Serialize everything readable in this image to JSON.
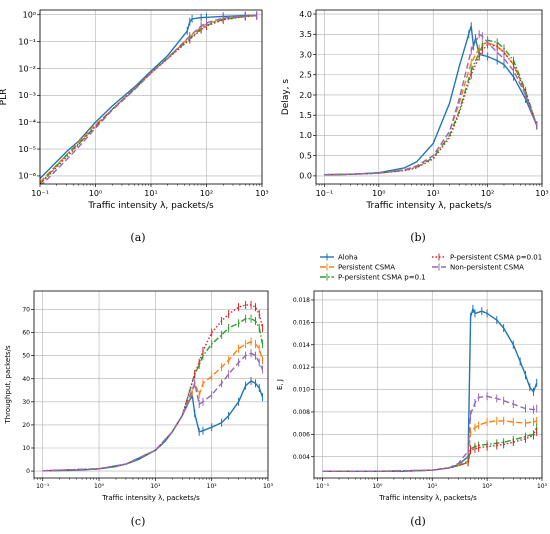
{
  "chart_data": [
    {
      "id": "a",
      "type": "line",
      "caption": "(a)",
      "xlabel": "Traffic intensity λ, packets/s",
      "ylabel": "PLR",
      "xscale": "log",
      "yscale": "log",
      "xlim": [
        0.1,
        1000
      ],
      "ylim": [
        5e-07,
        1.5
      ],
      "xticks": [
        0.1,
        1,
        10,
        100,
        1000
      ],
      "xticklabels": [
        "10⁻¹",
        "10⁰",
        "10¹",
        "10²",
        "10³"
      ],
      "yticks": [
        1e-06,
        1e-05,
        0.0001,
        0.001,
        0.01,
        0.1,
        1
      ],
      "yticklabels": [
        "10⁻⁶",
        "10⁻⁵",
        "10⁻⁴",
        "10⁻³",
        "10⁻²",
        "10⁻¹",
        "10⁰"
      ],
      "grid": true,
      "series": [
        {
          "key": "aloha",
          "x": [
            0.1,
            0.3,
            0.5,
            1,
            2,
            5,
            10,
            20,
            45,
            50,
            55,
            80,
            100,
            200,
            500,
            800
          ],
          "y": [
            8e-07,
            8e-06,
            2e-05,
            0.0001,
            0.0004,
            0.002,
            0.008,
            0.03,
            0.25,
            0.55,
            0.7,
            0.78,
            0.8,
            0.87,
            0.93,
            0.95
          ]
        },
        {
          "key": "persistent",
          "x": [
            0.1,
            0.3,
            0.5,
            1,
            2,
            5,
            10,
            20,
            50,
            80,
            100,
            200,
            500,
            800
          ],
          "y": [
            6e-07,
            6e-06,
            1.8e-05,
            8e-05,
            0.0003,
            0.0018,
            0.007,
            0.025,
            0.15,
            0.35,
            0.45,
            0.7,
            0.88,
            0.93
          ]
        },
        {
          "key": "ppersistent01",
          "x": [
            0.1,
            0.3,
            0.5,
            1,
            2,
            5,
            10,
            20,
            50,
            80,
            100,
            200,
            500,
            800
          ],
          "y": [
            5e-07,
            6e-06,
            1.6e-05,
            7e-05,
            0.0003,
            0.0017,
            0.007,
            0.024,
            0.13,
            0.3,
            0.4,
            0.67,
            0.87,
            0.93
          ]
        },
        {
          "key": "ppersistent001",
          "x": [
            0.1,
            0.3,
            0.5,
            1,
            2,
            5,
            10,
            20,
            50,
            80,
            100,
            200,
            500,
            800
          ],
          "y": [
            5e-07,
            5e-06,
            1.5e-05,
            7e-05,
            0.0003,
            0.0017,
            0.0068,
            0.023,
            0.12,
            0.28,
            0.38,
            0.65,
            0.86,
            0.92
          ]
        },
        {
          "key": "nonpersistent",
          "x": [
            0.1,
            0.3,
            0.5,
            1,
            2,
            5,
            10,
            20,
            50,
            80,
            100,
            200,
            500,
            800
          ],
          "y": [
            4e-07,
            4e-06,
            1.2e-05,
            6e-05,
            0.00028,
            0.0016,
            0.0066,
            0.024,
            0.16,
            0.38,
            0.5,
            0.75,
            0.9,
            0.94
          ]
        }
      ]
    },
    {
      "id": "b",
      "type": "line",
      "caption": "(b)",
      "xlabel": "Traffic intensity λ, packets/s",
      "ylabel": "Delay, s",
      "xscale": "log",
      "yscale": "linear",
      "xlim": [
        0.07,
        1000
      ],
      "ylim": [
        -0.2,
        4.1
      ],
      "xticks": [
        0.1,
        1,
        10,
        100,
        1000
      ],
      "xticklabels": [
        "10⁻¹",
        "10⁰",
        "10¹",
        "10²",
        "10³"
      ],
      "yticks": [
        0,
        0.5,
        1,
        1.5,
        2,
        2.5,
        3,
        3.5,
        4
      ],
      "yticklabels": [
        "0.0",
        "0.5",
        "1.0",
        "1.5",
        "2.0",
        "2.5",
        "3.0",
        "3.5",
        "4.0"
      ],
      "grid": true,
      "series": [
        {
          "key": "aloha",
          "x": [
            0.1,
            0.3,
            1,
            3,
            5,
            10,
            20,
            30,
            45,
            50,
            55,
            60,
            70,
            100,
            150,
            200,
            300,
            500,
            800
          ],
          "y": [
            0.03,
            0.04,
            0.08,
            0.2,
            0.35,
            0.8,
            1.8,
            2.7,
            3.5,
            3.7,
            3.2,
            3.4,
            3.0,
            2.95,
            2.85,
            2.75,
            2.45,
            1.9,
            1.25
          ]
        },
        {
          "key": "persistent",
          "x": [
            0.1,
            0.3,
            1,
            3,
            5,
            10,
            20,
            30,
            50,
            70,
            80,
            100,
            150,
            200,
            300,
            500,
            800
          ],
          "y": [
            0.03,
            0.04,
            0.07,
            0.15,
            0.25,
            0.5,
            1.1,
            1.8,
            2.8,
            3.15,
            3.25,
            3.3,
            3.2,
            3.05,
            2.75,
            2.05,
            1.25
          ]
        },
        {
          "key": "ppersistent01",
          "x": [
            0.1,
            0.3,
            1,
            3,
            5,
            10,
            20,
            30,
            50,
            70,
            80,
            100,
            150,
            200,
            300,
            500,
            800
          ],
          "y": [
            0.03,
            0.04,
            0.07,
            0.14,
            0.22,
            0.45,
            1.0,
            1.6,
            2.6,
            3.05,
            3.2,
            3.35,
            3.3,
            3.15,
            2.85,
            2.1,
            1.25
          ]
        },
        {
          "key": "ppersistent001",
          "x": [
            0.1,
            0.3,
            1,
            3,
            5,
            10,
            20,
            30,
            50,
            70,
            80,
            100,
            150,
            200,
            300,
            500,
            800
          ],
          "y": [
            0.03,
            0.04,
            0.07,
            0.13,
            0.2,
            0.42,
            0.95,
            1.55,
            2.5,
            2.95,
            3.1,
            3.25,
            3.2,
            3.05,
            2.75,
            2.05,
            1.25
          ]
        },
        {
          "key": "nonpersistent",
          "x": [
            0.1,
            0.3,
            1,
            3,
            5,
            10,
            20,
            30,
            50,
            70,
            80,
            100,
            150,
            200,
            300,
            500,
            800
          ],
          "y": [
            0.03,
            0.04,
            0.07,
            0.15,
            0.24,
            0.5,
            1.1,
            1.9,
            3.1,
            3.5,
            3.45,
            3.3,
            3.05,
            2.9,
            2.6,
            2.0,
            1.25
          ]
        }
      ]
    },
    {
      "id": "c",
      "type": "line",
      "caption": "(c)",
      "xlabel": "Traffic intensity λ, packets/s",
      "ylabel": "Throughput, packets/s",
      "xscale": "log",
      "yscale": "linear",
      "xlim": [
        0.07,
        1000
      ],
      "ylim": [
        -3,
        78
      ],
      "xticks": [
        0.1,
        1,
        10,
        100,
        1000
      ],
      "xticklabels": [
        "10⁻¹",
        "10⁰",
        "10¹",
        "10²",
        "10³"
      ],
      "yticks": [
        0,
        10,
        20,
        30,
        40,
        50,
        60,
        70
      ],
      "yticklabels": [
        "0",
        "10",
        "20",
        "30",
        "40",
        "50",
        "60",
        "70"
      ],
      "grid": true,
      "series": [
        {
          "key": "aloha",
          "x": [
            0.1,
            0.3,
            0.5,
            1,
            2,
            3,
            5,
            10,
            15,
            20,
            30,
            45,
            50,
            60,
            70,
            100,
            150,
            200,
            300,
            400,
            500,
            600,
            700,
            800
          ],
          "y": [
            0.1,
            0.3,
            0.5,
            1,
            2,
            3,
            5,
            9,
            13,
            17,
            24,
            33,
            25,
            17,
            17.5,
            19,
            21,
            24,
            30,
            37,
            39,
            38,
            36,
            32
          ]
        },
        {
          "key": "persistent",
          "x": [
            0.1,
            1,
            3,
            10,
            20,
            30,
            45,
            50,
            60,
            70,
            100,
            150,
            200,
            300,
            400,
            500,
            600,
            700,
            800
          ],
          "y": [
            0.1,
            1,
            3,
            9,
            17,
            24,
            34,
            38,
            33,
            38,
            41,
            45,
            48,
            53,
            55,
            56,
            55,
            53,
            48
          ]
        },
        {
          "key": "ppersistent01",
          "x": [
            0.1,
            1,
            3,
            10,
            20,
            30,
            50,
            60,
            70,
            100,
            150,
            200,
            300,
            400,
            500,
            600,
            700,
            800
          ],
          "y": [
            0.1,
            1,
            3,
            9,
            17,
            24,
            42,
            46,
            50,
            55,
            59,
            62,
            64,
            66,
            66,
            65,
            62,
            55
          ]
        },
        {
          "key": "ppersistent001",
          "x": [
            0.1,
            1,
            3,
            10,
            20,
            30,
            50,
            60,
            70,
            100,
            150,
            200,
            300,
            400,
            500,
            600,
            700,
            800
          ],
          "y": [
            0.1,
            1,
            3,
            9,
            17,
            24,
            42,
            47,
            52,
            60,
            65,
            68,
            71,
            72,
            72,
            71,
            68,
            62
          ]
        },
        {
          "key": "nonpersistent",
          "x": [
            0.1,
            1,
            3,
            10,
            20,
            30,
            50,
            60,
            70,
            100,
            150,
            200,
            300,
            400,
            500,
            600,
            700,
            800
          ],
          "y": [
            0.1,
            1,
            3,
            9,
            17,
            24,
            38,
            29,
            30,
            33,
            38,
            42,
            47,
            50,
            51,
            50,
            47,
            44
          ]
        }
      ]
    },
    {
      "id": "d",
      "type": "line",
      "caption": "(d)",
      "xlabel": "Traffic intensity λ, packets/s",
      "ylabel": "E, J",
      "xscale": "log",
      "yscale": "linear",
      "xlim": [
        0.07,
        1000
      ],
      "ylim": [
        0.0021,
        0.0188
      ],
      "xticks": [
        0.1,
        1,
        10,
        100,
        1000
      ],
      "xticklabels": [
        "10⁻¹",
        "10⁰",
        "10¹",
        "10²",
        "10³"
      ],
      "yticks": [
        0.004,
        0.006,
        0.008,
        0.01,
        0.012,
        0.014,
        0.016,
        0.018
      ],
      "yticklabels": [
        "0.004",
        "0.006",
        "0.008",
        "0.010",
        "0.012",
        "0.014",
        "0.016",
        "0.018"
      ],
      "grid": true,
      "legend": {
        "placement": "upper-left-outside",
        "entries": [
          {
            "key": "aloha",
            "label": "Aloha"
          },
          {
            "key": "persistent",
            "label": "Persistent CSMA"
          },
          {
            "key": "ppersistent01",
            "label": "P-persistent CSMA p=0.1"
          },
          {
            "key": "ppersistent001",
            "label": "P-persistent CSMA p=0.01"
          },
          {
            "key": "nonpersistent",
            "label": "Non-persistent CSMA"
          }
        ]
      },
      "series": [
        {
          "key": "aloha",
          "x": [
            0.1,
            0.3,
            1,
            3,
            10,
            20,
            30,
            45,
            50,
            55,
            60,
            80,
            100,
            150,
            200,
            300,
            400,
            500,
            600,
            700,
            800
          ],
          "y": [
            0.0027,
            0.0027,
            0.0027,
            0.0027,
            0.0028,
            0.003,
            0.0033,
            0.004,
            0.0165,
            0.0172,
            0.0168,
            0.017,
            0.0168,
            0.0162,
            0.0155,
            0.014,
            0.0125,
            0.0113,
            0.0102,
            0.0098,
            0.0106
          ]
        },
        {
          "key": "persistent",
          "x": [
            0.1,
            1,
            10,
            20,
            30,
            45,
            50,
            60,
            70,
            100,
            150,
            200,
            300,
            500,
            700,
            800
          ],
          "y": [
            0.0027,
            0.0027,
            0.0028,
            0.003,
            0.0033,
            0.0036,
            0.0062,
            0.0066,
            0.0068,
            0.0071,
            0.0072,
            0.0072,
            0.0071,
            0.007,
            0.0071,
            0.0072
          ]
        },
        {
          "key": "ppersistent01",
          "x": [
            0.1,
            1,
            10,
            20,
            30,
            45,
            50,
            60,
            70,
            100,
            150,
            200,
            300,
            500,
            700,
            800
          ],
          "y": [
            0.0027,
            0.0027,
            0.0028,
            0.003,
            0.0032,
            0.0035,
            0.0047,
            0.0049,
            0.005,
            0.0051,
            0.0052,
            0.0053,
            0.0055,
            0.0058,
            0.006,
            0.0066
          ]
        },
        {
          "key": "ppersistent001",
          "x": [
            0.1,
            1,
            10,
            20,
            30,
            45,
            50,
            60,
            70,
            100,
            150,
            200,
            300,
            500,
            700,
            800
          ],
          "y": [
            0.0027,
            0.0027,
            0.0028,
            0.003,
            0.0032,
            0.0035,
            0.0046,
            0.0047,
            0.0048,
            0.0049,
            0.005,
            0.0051,
            0.0053,
            0.0056,
            0.0059,
            0.0062
          ]
        },
        {
          "key": "nonpersistent",
          "x": [
            0.1,
            1,
            10,
            20,
            30,
            45,
            50,
            60,
            70,
            100,
            150,
            200,
            300,
            500,
            700,
            800
          ],
          "y": [
            0.0027,
            0.0027,
            0.0028,
            0.003,
            0.0034,
            0.0045,
            0.0078,
            0.0088,
            0.0093,
            0.0094,
            0.0092,
            0.009,
            0.0087,
            0.0083,
            0.0082,
            0.0083
          ]
        }
      ]
    }
  ],
  "styles": {
    "aloha": {
      "color": "#1f77b4",
      "dash": ""
    },
    "persistent": {
      "color": "#ff7f0e",
      "dash": "6,3"
    },
    "ppersistent01": {
      "color": "#2ca02c",
      "dash": "6,2,1.5,2"
    },
    "ppersistent001": {
      "color": "#d62728",
      "dash": "1.5,2"
    },
    "nonpersistent": {
      "color": "#9467bd",
      "dash": "6,3"
    },
    "grid_color": "#b0b0b0"
  }
}
